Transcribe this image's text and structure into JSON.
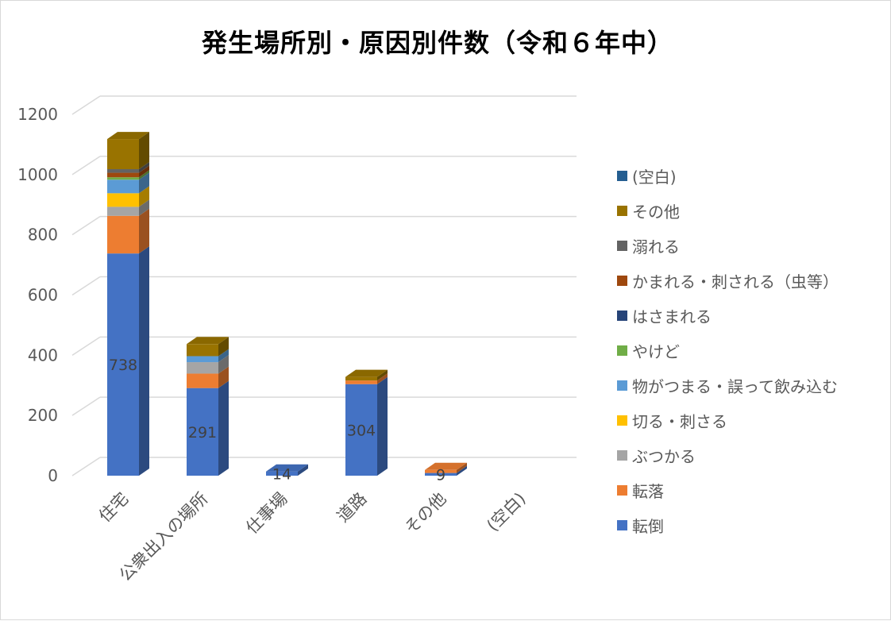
{
  "chart_data": {
    "type": "bar",
    "title": "発生場所別・原因別件数（令和６年中）",
    "categories": [
      "住宅",
      "公衆出入の場所",
      "仕事場",
      "道路",
      "その他",
      "(空白)"
    ],
    "ylim": [
      0,
      1200
    ],
    "yticks": [
      0,
      200,
      400,
      600,
      800,
      1000,
      1200
    ],
    "grid": true,
    "legend_position": "right",
    "series": [
      {
        "name": "転倒",
        "color": "#4472c4",
        "values": [
          738,
          291,
          14,
          304,
          9,
          0
        ],
        "labels": [
          "738",
          "291",
          "14",
          "304",
          "9",
          ""
        ]
      },
      {
        "name": "転落",
        "color": "#ed7d31",
        "values": [
          125,
          48,
          0,
          12,
          10,
          0
        ]
      },
      {
        "name": "ぶつかる",
        "color": "#a5a5a5",
        "values": [
          30,
          38,
          0,
          0,
          0,
          0
        ]
      },
      {
        "name": "切る・刺さる",
        "color": "#ffc000",
        "values": [
          45,
          0,
          0,
          0,
          0,
          0
        ]
      },
      {
        "name": "物がつまる・誤って飲み込む",
        "color": "#5b9bd5",
        "values": [
          45,
          20,
          0,
          0,
          0,
          0
        ]
      },
      {
        "name": "やけど",
        "color": "#70ad47",
        "values": [
          8,
          0,
          0,
          0,
          0,
          0
        ]
      },
      {
        "name": "はさまれる",
        "color": "#264478",
        "values": [
          0,
          0,
          0,
          0,
          0,
          0
        ]
      },
      {
        "name": "かまれる・刺される（虫等）",
        "color": "#9e480e",
        "values": [
          15,
          0,
          0,
          0,
          0,
          0
        ]
      },
      {
        "name": "溺れる",
        "color": "#636363",
        "values": [
          12,
          0,
          0,
          0,
          0,
          0
        ]
      },
      {
        "name": "その他",
        "color": "#997300",
        "values": [
          100,
          40,
          0,
          12,
          0,
          0
        ]
      },
      {
        "name": "(空白)",
        "color": "#255e91",
        "values": [
          0,
          0,
          0,
          0,
          0,
          0
        ]
      }
    ],
    "legend_order": [
      "(空白)",
      "その他",
      "溺れる",
      "かまれる・刺される（虫等）",
      "はさまれる",
      "やけど",
      "物がつまる・誤って飲み込む",
      "切る・刺さる",
      "ぶつかる",
      "転落",
      "転倒"
    ]
  }
}
